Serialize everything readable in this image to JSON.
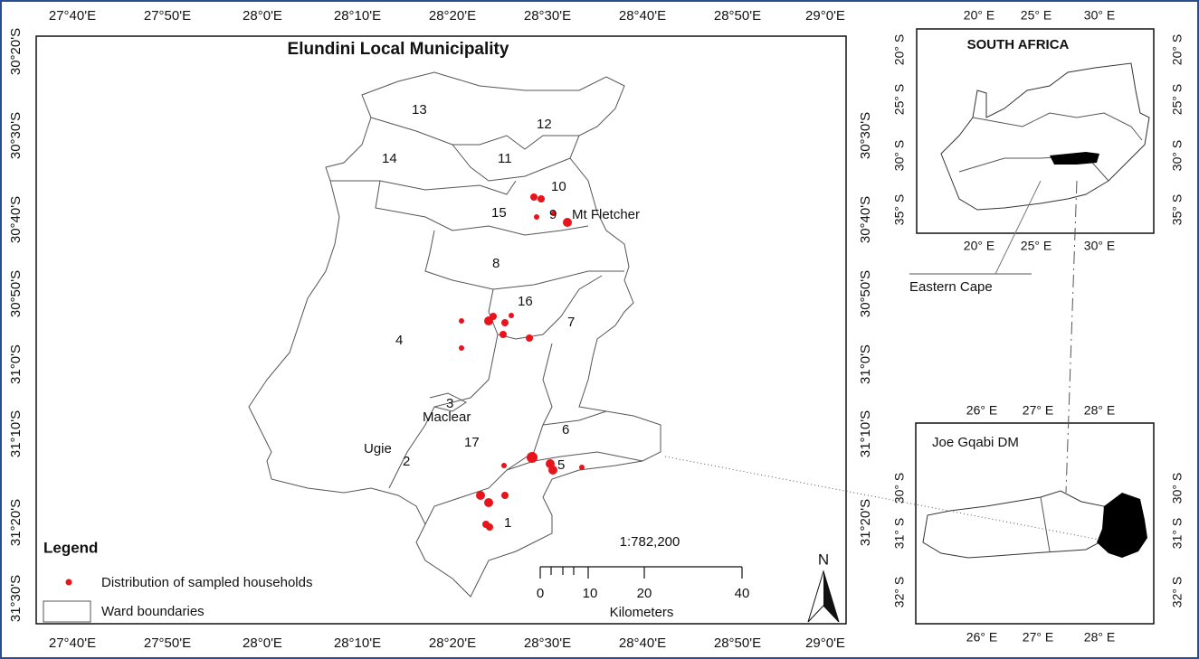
{
  "main_map": {
    "title": "Elundini Local Municipality",
    "lon_labels": [
      "27°40'E",
      "27°50'E",
      "28°0'E",
      "28°10'E",
      "28°20'E",
      "28°30'E",
      "28°40'E",
      "28°50'E",
      "29°0'E"
    ],
    "lat_labels": [
      "30°20'S",
      "30°30'S",
      "30°40'S",
      "30°50'S",
      "31°0'S",
      "31°10'S",
      "31°20'S",
      "31°30'S"
    ],
    "wards": [
      "1",
      "2",
      "3",
      "4",
      "5",
      "6",
      "7",
      "8",
      "9",
      "10",
      "11",
      "12",
      "13",
      "14",
      "15",
      "16",
      "17"
    ],
    "places": [
      "Mt Fletcher",
      "Maclear",
      "Ugie"
    ],
    "legend": {
      "title": "Legend",
      "items": [
        "Distribution of sampled households",
        "Ward boundaries"
      ]
    },
    "scale": {
      "ratio": "1:782,200",
      "ticks": [
        "0",
        "10",
        "20",
        "40"
      ],
      "lead": "10",
      "unit": "Kilometers"
    },
    "north": "N"
  },
  "inset_country": {
    "title": "SOUTH AFRICA",
    "lon_labels": [
      "20° E",
      "25° E",
      "30° E"
    ],
    "lat_labels": [
      "20° S",
      "25° S",
      "30° S",
      "35° S"
    ],
    "province": "Eastern Cape"
  },
  "inset_district": {
    "title": "Joe Gqabi DM",
    "lon_labels": [
      "26° E",
      "27° E",
      "28° E"
    ],
    "lat_labels": [
      "30° S",
      "31° S",
      "32° S"
    ]
  }
}
